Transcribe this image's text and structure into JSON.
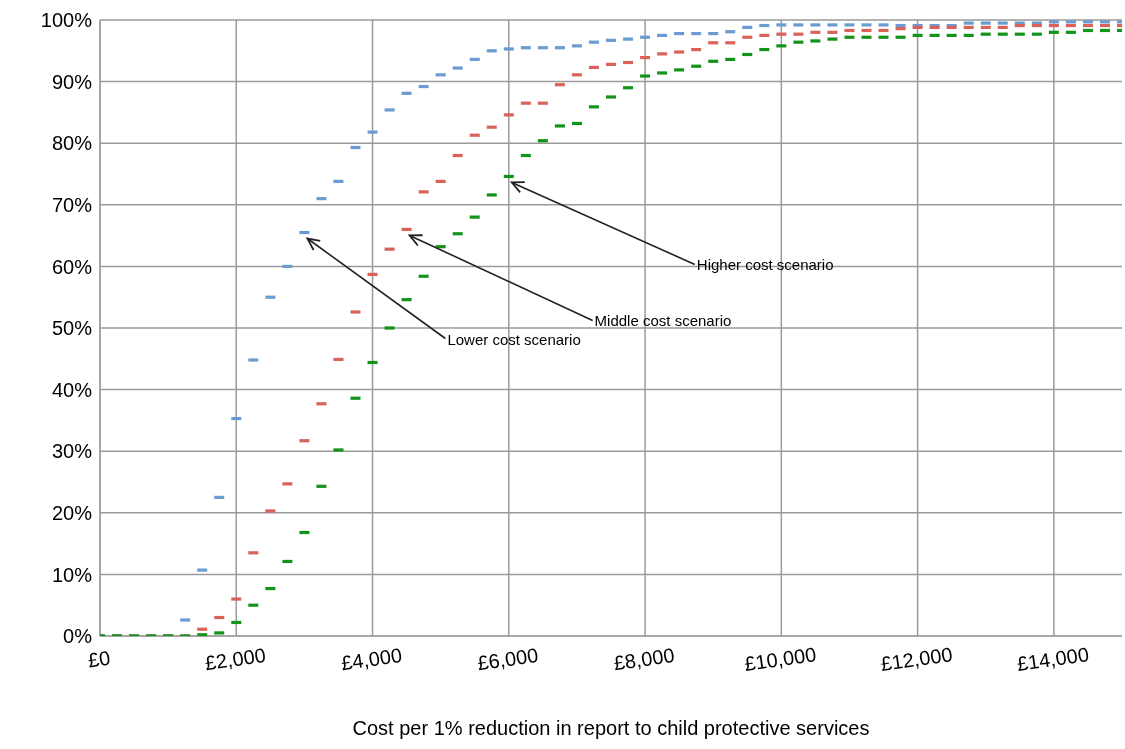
{
  "chart_data": {
    "type": "scatter",
    "xlabel": "Cost per 1% reduction in report to child protective services",
    "x": [
      0,
      250,
      500,
      750,
      1000,
      1250,
      1500,
      1750,
      2000,
      2250,
      2500,
      2750,
      3000,
      3250,
      3500,
      3750,
      4000,
      4250,
      4500,
      4750,
      5000,
      5250,
      5500,
      5750,
      6000,
      6250,
      6500,
      6750,
      7000,
      7250,
      7500,
      7750,
      8000,
      8250,
      8500,
      8750,
      9000,
      9250,
      9500,
      9750,
      10000,
      10250,
      10500,
      10750,
      11000,
      11250,
      11500,
      11750,
      12000,
      12250,
      12500,
      12750,
      13000,
      13250,
      13500,
      13750,
      14000,
      14250,
      14500,
      14750,
      15000
    ],
    "series": [
      {
        "color": "#6a9bd1",
        "values": [
          0,
          0,
          0,
          0,
          0,
          2.6,
          10.7,
          22.5,
          35.3,
          44.8,
          55.0,
          60.0,
          65.5,
          71.0,
          73.8,
          79.3,
          81.8,
          85.4,
          88.1,
          89.2,
          91.1,
          92.2,
          93.6,
          95.0,
          95.3,
          95.5,
          95.5,
          95.5,
          95.8,
          96.4,
          96.7,
          96.9,
          97.2,
          97.5,
          97.8,
          97.8,
          97.8,
          98.1,
          98.8,
          99.1,
          99.2,
          99.2,
          99.2,
          99.2,
          99.2,
          99.2,
          99.2,
          99.1,
          99.1,
          99.1,
          99.1,
          99.5,
          99.5,
          99.5,
          99.5,
          99.5,
          99.7,
          99.7,
          99.7,
          99.7,
          99.7
        ]
      },
      {
        "color": "#d9625a",
        "values": [
          0,
          0,
          0,
          0,
          0,
          0,
          1.1,
          3.0,
          6.0,
          13.5,
          20.3,
          24.7,
          31.7,
          37.7,
          44.9,
          52.6,
          58.7,
          62.8,
          66.0,
          72.1,
          73.8,
          78.0,
          81.3,
          82.6,
          84.6,
          86.5,
          86.5,
          89.5,
          91.1,
          92.3,
          92.8,
          93.1,
          93.9,
          94.5,
          94.8,
          95.2,
          96.3,
          96.3,
          97.2,
          97.5,
          97.7,
          97.7,
          98.0,
          98.0,
          98.3,
          98.3,
          98.3,
          98.6,
          98.8,
          98.8,
          98.8,
          98.8,
          98.8,
          98.8,
          99.1,
          99.1,
          99.1,
          99.1,
          99.1,
          99.1,
          99.1
        ]
      },
      {
        "color": "#12941a",
        "values": [
          0,
          0,
          0,
          0,
          0,
          0,
          0.2,
          0.5,
          2.2,
          5.0,
          7.7,
          12.1,
          16.8,
          24.3,
          30.2,
          38.6,
          44.4,
          50.0,
          54.6,
          58.4,
          63.2,
          65.3,
          68.0,
          71.6,
          74.6,
          78.0,
          80.4,
          82.8,
          83.2,
          85.9,
          87.5,
          89.0,
          90.9,
          91.4,
          91.9,
          92.5,
          93.3,
          93.6,
          94.4,
          95.2,
          95.8,
          96.4,
          96.6,
          96.9,
          97.2,
          97.2,
          97.2,
          97.2,
          97.5,
          97.5,
          97.5,
          97.5,
          97.7,
          97.7,
          97.7,
          97.7,
          98.0,
          98.0,
          98.3,
          98.3,
          98.3
        ]
      }
    ],
    "xlim": [
      0,
      15000
    ],
    "xticks": [
      {
        "value": 0,
        "label": "£0"
      },
      {
        "value": 2000,
        "label": "£2,000"
      },
      {
        "value": 4000,
        "label": "£4,000"
      },
      {
        "value": 6000,
        "label": "£6,000"
      },
      {
        "value": 8000,
        "label": "£8,000"
      },
      {
        "value": 10000,
        "label": "£10,000"
      },
      {
        "value": 12000,
        "label": "£12,000"
      },
      {
        "value": 14000,
        "label": "£14,000"
      }
    ],
    "ylim": [
      0,
      100
    ],
    "yticks": [
      {
        "value": 0,
        "label": "0%"
      },
      {
        "value": 10,
        "label": "10%"
      },
      {
        "value": 20,
        "label": "20%"
      },
      {
        "value": 30,
        "label": "30%"
      },
      {
        "value": 40,
        "label": "40%"
      },
      {
        "value": 50,
        "label": "50%"
      },
      {
        "value": 60,
        "label": "60%"
      },
      {
        "value": 70,
        "label": "70%"
      },
      {
        "value": 80,
        "label": "80%"
      },
      {
        "value": 90,
        "label": "90%"
      },
      {
        "value": 100,
        "label": "100%"
      }
    ],
    "grid": true,
    "legend": false,
    "marker": "square",
    "annotations": [
      {
        "text": "Lower cost scenario",
        "x": 3000,
        "y": 65.5
      },
      {
        "text": "Middle cost scenario",
        "x": 4500,
        "y": 66.0
      },
      {
        "text": "Higher cost scenario",
        "x": 6000,
        "y": 74.6
      }
    ]
  }
}
